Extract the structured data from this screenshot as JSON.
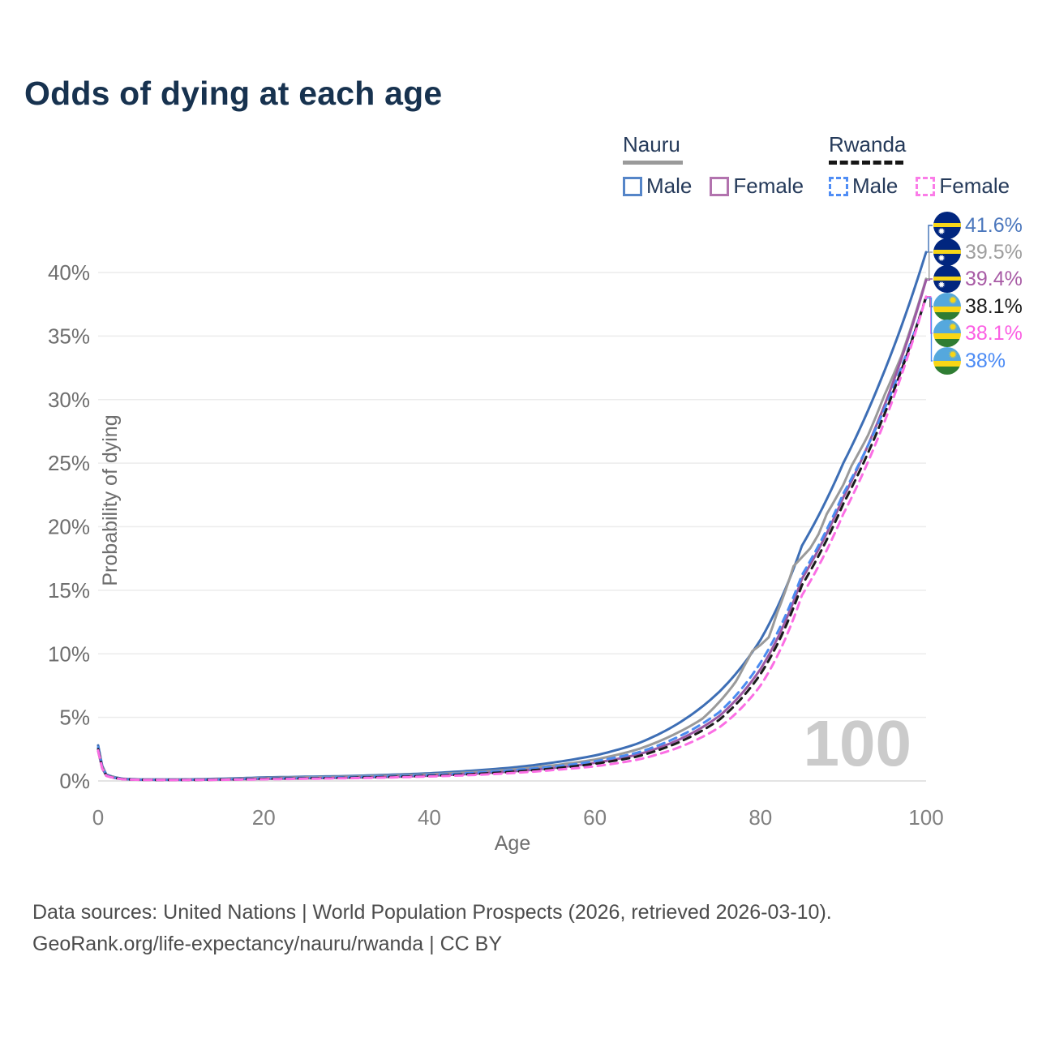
{
  "header": {
    "title": "Odds of dying at each age"
  },
  "legend": {
    "groups": [
      {
        "country": "Nauru",
        "line_style": "solid",
        "line_color": "#9a9a9a",
        "items": [
          {
            "label": "Male",
            "box_color": "#5585c8",
            "dashed": false
          },
          {
            "label": "Female",
            "box_color": "#b273ae",
            "dashed": false
          }
        ]
      },
      {
        "country": "Rwanda",
        "line_style": "dashed",
        "line_color": "#161616",
        "items": [
          {
            "label": "Male",
            "box_color": "#4f8df5",
            "dashed": true
          },
          {
            "label": "Female",
            "box_color": "#fb7ce8",
            "dashed": true
          }
        ]
      }
    ]
  },
  "chart_data": {
    "type": "line",
    "title": "Odds of dying at each age",
    "xlabel": "Age",
    "ylabel": "Probability of dying",
    "xlim": [
      0,
      100
    ],
    "ylim": [
      0,
      43
    ],
    "grid": "horizontal-only",
    "x_ticks": [
      0,
      20,
      40,
      60,
      80,
      100
    ],
    "y_ticks": [
      {
        "v": 0,
        "label": "0%"
      },
      {
        "v": 5,
        "label": "5%"
      },
      {
        "v": 10,
        "label": "10%"
      },
      {
        "v": 15,
        "label": "15%"
      },
      {
        "v": 20,
        "label": "20%"
      },
      {
        "v": 25,
        "label": "25%"
      },
      {
        "v": 30,
        "label": "30%"
      },
      {
        "v": 35,
        "label": "35%"
      },
      {
        "v": 40,
        "label": "40%"
      }
    ],
    "watermark": "100",
    "legend_position": "top-right",
    "series": [
      {
        "id": "nauru-male",
        "name": "Nauru Male",
        "color": "#3d6eb5",
        "dash": false,
        "flag": "nauru",
        "end_label": "41.6%",
        "label_color": "#4b77bd",
        "points": [
          [
            0,
            2.8
          ],
          [
            1,
            0.5
          ],
          [
            3,
            0.18
          ],
          [
            5,
            0.12
          ],
          [
            10,
            0.12
          ],
          [
            15,
            0.18
          ],
          [
            20,
            0.28
          ],
          [
            25,
            0.33
          ],
          [
            30,
            0.38
          ],
          [
            35,
            0.48
          ],
          [
            40,
            0.6
          ],
          [
            45,
            0.8
          ],
          [
            50,
            1.05
          ],
          [
            55,
            1.45
          ],
          [
            60,
            2.0
          ],
          [
            65,
            2.9
          ],
          [
            70,
            4.5
          ],
          [
            75,
            7.0
          ],
          [
            80,
            11.1
          ],
          [
            85,
            18.5
          ],
          [
            90,
            25.0
          ],
          [
            95,
            32.3
          ],
          [
            100,
            41.6
          ]
        ]
      },
      {
        "id": "nauru-both",
        "name": "Nauru (both sexes)",
        "color": "#9a9a9a",
        "dash": false,
        "flag": "nauru",
        "end_label": "39.5%",
        "label_color": "#9e9e9e",
        "points": [
          [
            0,
            2.6
          ],
          [
            1,
            0.46
          ],
          [
            3,
            0.16
          ],
          [
            5,
            0.1
          ],
          [
            10,
            0.1
          ],
          [
            15,
            0.15
          ],
          [
            20,
            0.24
          ],
          [
            25,
            0.28
          ],
          [
            30,
            0.33
          ],
          [
            35,
            0.41
          ],
          [
            40,
            0.52
          ],
          [
            45,
            0.68
          ],
          [
            50,
            0.9
          ],
          [
            55,
            1.22
          ],
          [
            60,
            1.68
          ],
          [
            65,
            2.45
          ],
          [
            70,
            3.8
          ],
          [
            73,
            4.9
          ],
          [
            75,
            6.2
          ],
          [
            77,
            7.8
          ],
          [
            78,
            9.0
          ],
          [
            79,
            10.2
          ],
          [
            80,
            10.7
          ],
          [
            81,
            11.3
          ],
          [
            82,
            13.2
          ],
          [
            84,
            16.9
          ],
          [
            85,
            17.6
          ],
          [
            86,
            18.3
          ],
          [
            87,
            19.4
          ],
          [
            88,
            21.0
          ],
          [
            90,
            23.3
          ],
          [
            91,
            24.8
          ],
          [
            93,
            27.2
          ],
          [
            95,
            30.4
          ],
          [
            97,
            33.4
          ],
          [
            100,
            39.5
          ]
        ]
      },
      {
        "id": "nauru-female",
        "name": "Nauru Female",
        "color": "#9c59a3",
        "dash": false,
        "flag": "nauru",
        "end_label": "39.4%",
        "label_color": "#a85ba5",
        "points": [
          [
            0,
            2.35
          ],
          [
            1,
            0.4
          ],
          [
            3,
            0.14
          ],
          [
            5,
            0.09
          ],
          [
            10,
            0.08
          ],
          [
            15,
            0.11
          ],
          [
            20,
            0.16
          ],
          [
            25,
            0.2
          ],
          [
            30,
            0.25
          ],
          [
            35,
            0.31
          ],
          [
            40,
            0.41
          ],
          [
            45,
            0.55
          ],
          [
            50,
            0.75
          ],
          [
            55,
            1.02
          ],
          [
            60,
            1.42
          ],
          [
            65,
            2.05
          ],
          [
            70,
            3.2
          ],
          [
            75,
            5.1
          ],
          [
            80,
            8.8
          ],
          [
            85,
            15.9
          ],
          [
            90,
            22.3
          ],
          [
            95,
            29.6
          ],
          [
            100,
            39.4
          ]
        ]
      },
      {
        "id": "rwanda-male",
        "name": "Rwanda Male",
        "color": "#4b8bf0",
        "dash": true,
        "flag": "rwanda",
        "end_label": "38%",
        "label_color": "#4b8bf5",
        "points": [
          [
            0,
            2.65
          ],
          [
            1,
            0.44
          ],
          [
            3,
            0.15
          ],
          [
            5,
            0.095
          ],
          [
            10,
            0.085
          ],
          [
            15,
            0.12
          ],
          [
            20,
            0.2
          ],
          [
            25,
            0.24
          ],
          [
            30,
            0.29
          ],
          [
            35,
            0.37
          ],
          [
            40,
            0.47
          ],
          [
            45,
            0.62
          ],
          [
            50,
            0.85
          ],
          [
            55,
            1.12
          ],
          [
            60,
            1.55
          ],
          [
            65,
            2.2
          ],
          [
            70,
            3.45
          ],
          [
            75,
            5.4
          ],
          [
            80,
            9.3
          ],
          [
            85,
            16.2
          ],
          [
            90,
            22.6
          ],
          [
            95,
            29.3
          ],
          [
            100,
            38.0
          ]
        ]
      },
      {
        "id": "rwanda-both",
        "name": "Rwanda (both sexes)",
        "color": "#1b1b1b",
        "dash": true,
        "flag": "rwanda",
        "end_label": "38.1%",
        "label_color": "#1c1c1c",
        "points": [
          [
            0,
            2.5
          ],
          [
            1,
            0.42
          ],
          [
            3,
            0.14
          ],
          [
            5,
            0.09
          ],
          [
            10,
            0.075
          ],
          [
            15,
            0.1
          ],
          [
            20,
            0.16
          ],
          [
            25,
            0.2
          ],
          [
            30,
            0.24
          ],
          [
            35,
            0.31
          ],
          [
            40,
            0.4
          ],
          [
            45,
            0.53
          ],
          [
            50,
            0.72
          ],
          [
            55,
            0.98
          ],
          [
            60,
            1.35
          ],
          [
            65,
            1.9
          ],
          [
            70,
            3.0
          ],
          [
            75,
            4.8
          ],
          [
            80,
            8.4
          ],
          [
            85,
            15.4
          ],
          [
            90,
            21.8
          ],
          [
            95,
            28.9
          ],
          [
            100,
            38.1
          ]
        ]
      },
      {
        "id": "rwanda-female",
        "name": "Rwanda Female",
        "color": "#fb6ee4",
        "dash": true,
        "flag": "rwanda",
        "end_label": "38.1%",
        "label_color": "#fb5fe3",
        "points": [
          [
            0,
            2.4
          ],
          [
            1,
            0.4
          ],
          [
            3,
            0.13
          ],
          [
            5,
            0.085
          ],
          [
            10,
            0.07
          ],
          [
            15,
            0.09
          ],
          [
            20,
            0.13
          ],
          [
            25,
            0.17
          ],
          [
            30,
            0.21
          ],
          [
            35,
            0.27
          ],
          [
            40,
            0.35
          ],
          [
            45,
            0.46
          ],
          [
            50,
            0.62
          ],
          [
            55,
            0.86
          ],
          [
            60,
            1.15
          ],
          [
            65,
            1.65
          ],
          [
            70,
            2.6
          ],
          [
            75,
            4.2
          ],
          [
            80,
            7.5
          ],
          [
            85,
            14.6
          ],
          [
            90,
            21.0
          ],
          [
            95,
            28.3
          ],
          [
            100,
            38.1
          ]
        ]
      }
    ],
    "label_order": [
      "nauru-male",
      "nauru-both",
      "nauru-female",
      "rwanda-both",
      "rwanda-female",
      "rwanda-male"
    ]
  },
  "footer": {
    "line1": "Data sources: United Nations | World Population Prospects (2026, retrieved 2026-03-10).",
    "line2": "GeoRank.org/life-expectancy/nauru/rwanda | CC BY"
  }
}
